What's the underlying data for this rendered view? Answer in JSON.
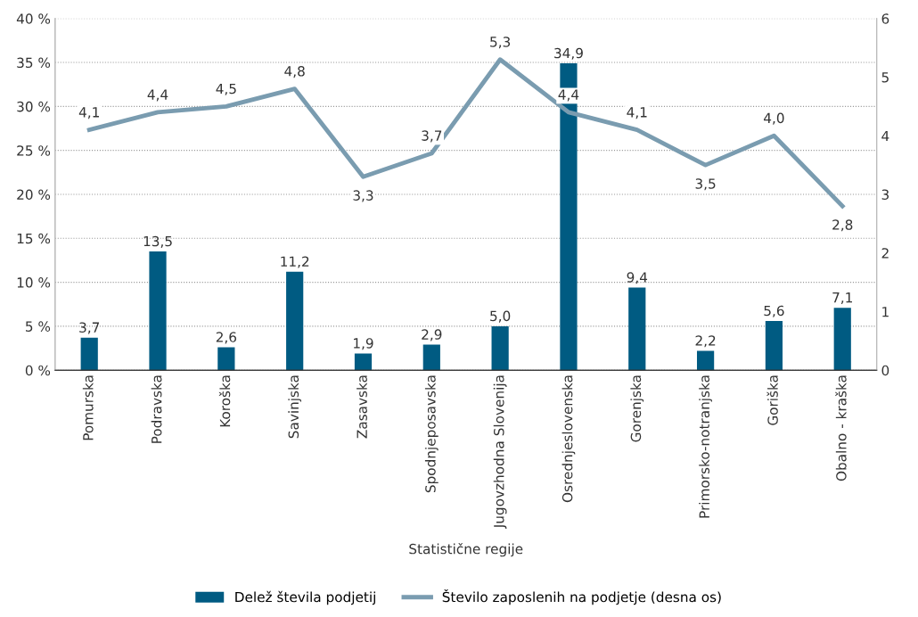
{
  "chart_data": {
    "type": "bar",
    "xlabel": "Statistične regije",
    "categories": [
      "Pomurska",
      "Podravska",
      "Koroška",
      "Savinjska",
      "Zasavska",
      "Spodnjeposavska",
      "Jugovzhodna Slovenija",
      "Osrednjeslovenska",
      "Gorenjska",
      "Primorsko-notranjska",
      "Goriška",
      "Obalno - kraška"
    ],
    "series": [
      {
        "name": "Delež števila podjetij",
        "color": "#005b82",
        "values": [
          3.7,
          13.5,
          2.6,
          11.2,
          1.9,
          2.9,
          5.0,
          34.9,
          9.4,
          2.2,
          5.6,
          7.1
        ],
        "value_labels": [
          "3,7",
          "13,5",
          "2,6",
          "11,2",
          "1,9",
          "2,9",
          "5,0",
          "34,9",
          "9,4",
          "2,2",
          "5,6",
          "7,1"
        ]
      },
      {
        "name": "Število zaposlenih na podjetje (desna os)",
        "type": "line",
        "axis": "y2",
        "color": "#7a9cb0",
        "values": [
          4.1,
          4.4,
          4.5,
          4.8,
          3.3,
          3.7,
          5.3,
          4.4,
          4.1,
          3.5,
          4.0,
          2.8
        ],
        "value_labels": [
          "4,1",
          "4,4",
          "4,5",
          "4,8",
          "3,3",
          "3,7",
          "5,3",
          "4,4",
          "4,1",
          "3,5",
          "4,0",
          "2,8"
        ]
      }
    ],
    "ylim": [
      0,
      40
    ],
    "yticks": [
      {
        "value": 0,
        "label": "0 %"
      },
      {
        "value": 5,
        "label": "5 %"
      },
      {
        "value": 10,
        "label": "10 %"
      },
      {
        "value": 15,
        "label": "15 %"
      },
      {
        "value": 20,
        "label": "20 %"
      },
      {
        "value": 25,
        "label": "25 %"
      },
      {
        "value": 30,
        "label": "30 %"
      },
      {
        "value": 35,
        "label": "35 %"
      },
      {
        "value": 40,
        "label": "40 %"
      }
    ],
    "y2lim": [
      0,
      6
    ],
    "y2ticks": [
      0,
      1,
      2,
      3,
      4,
      5,
      6
    ],
    "grid": "y",
    "legend": "bottom",
    "marker": "none",
    "line_style": "solid"
  }
}
